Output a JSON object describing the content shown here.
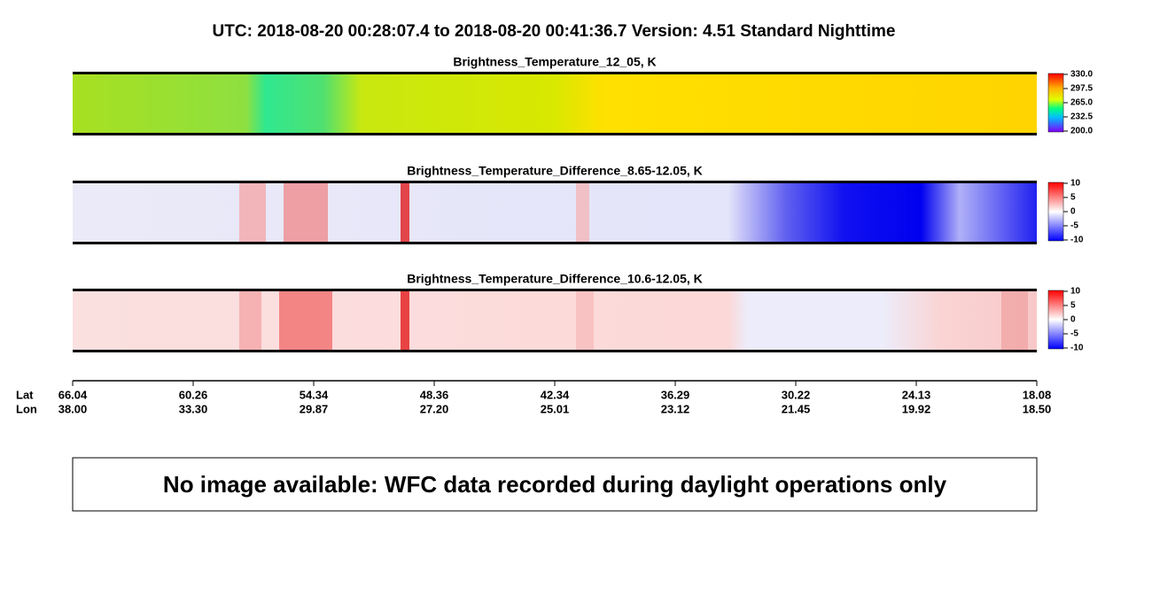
{
  "header": {
    "title": "UTC:  2018-08-20   00:28:07.4  to  2018-08-20   00:41:36.7    Version: 4.51  Standard Nighttime"
  },
  "panels": [
    {
      "title": "Brightness_Temperature_12_05, K",
      "colorbar": [
        "330.0",
        "297.5",
        "265.0",
        "232.5",
        "200.0"
      ]
    },
    {
      "title": "Brightness_Temperature_Difference_8.65-12.05, K",
      "colorbar": [
        "10",
        "5",
        "0",
        "-5",
        "-10"
      ]
    },
    {
      "title": "Brightness_Temperature_Difference_10.6-12.05, K",
      "colorbar": [
        "10",
        "5",
        "0",
        "-5",
        "-10"
      ]
    }
  ],
  "axis": {
    "lat_label": "Lat",
    "lon_label": "Lon",
    "lat": [
      "66.04",
      "60.26",
      "54.34",
      "48.36",
      "42.34",
      "36.29",
      "30.22",
      "24.13",
      "18.08"
    ],
    "lon": [
      "38.00",
      "33.30",
      "29.87",
      "27.20",
      "25.01",
      "23.12",
      "21.45",
      "19.92",
      "18.50"
    ]
  },
  "message": "No image available: WFC data recorded during daylight operations only"
}
